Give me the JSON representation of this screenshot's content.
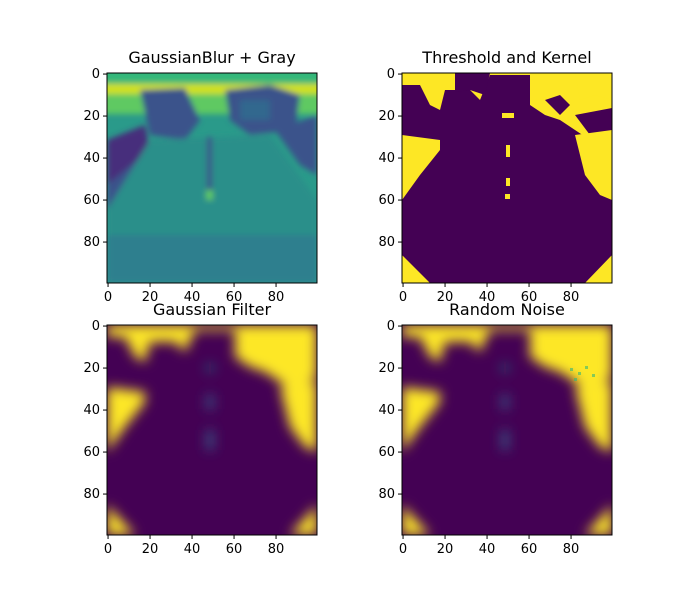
{
  "chart_data": [
    {
      "type": "heatmap",
      "title": "GaussianBlur + Gray",
      "xlabel": "",
      "ylabel": "",
      "xlim": [
        0,
        99
      ],
      "ylim": [
        99,
        0
      ],
      "x_ticks": [
        0,
        20,
        40,
        60,
        80
      ],
      "y_ticks": [
        0,
        20,
        40,
        60,
        80
      ],
      "colormap": "viridis",
      "content": "grayscale blurred road scene: bright horizon band near rows 5–8, darker trees and vehicles at top, teal road surface, dashed lane marking near column 48"
    },
    {
      "type": "heatmap",
      "title": "Threshold and Kernel",
      "xlabel": "",
      "ylabel": "",
      "xlim": [
        0,
        99
      ],
      "ylim": [
        99,
        0
      ],
      "x_ticks": [
        0,
        20,
        40,
        60,
        80
      ],
      "y_ticks": [
        0,
        20,
        40,
        60,
        80
      ],
      "colormap": "viridis (binary)",
      "content": "binary mask: dark road/tree region, yellow sky and roadside corners, thin yellow lane dashes near column 48"
    },
    {
      "type": "heatmap",
      "title": "Gaussian Filter",
      "xlabel": "",
      "ylabel": "",
      "xlim": [
        0,
        99
      ],
      "ylim": [
        99,
        0
      ],
      "x_ticks": [
        0,
        20,
        40,
        60,
        80
      ],
      "y_ticks": [
        0,
        20,
        40,
        60,
        80
      ],
      "colormap": "viridis",
      "content": "blurred version of the binary mask with soft teal edges"
    },
    {
      "type": "heatmap",
      "title": "Random Noise",
      "xlabel": "",
      "ylabel": "",
      "xlim": [
        0,
        99
      ],
      "ylim": [
        99,
        0
      ],
      "x_ticks": [
        0,
        20,
        40,
        60,
        80
      ],
      "y_ticks": [
        0,
        20,
        40,
        60,
        80
      ],
      "colormap": "viridis",
      "content": "blurred mask with added random noise"
    }
  ],
  "colors": {
    "viridis_dark": "#440154",
    "viridis_yellow": "#fde725",
    "viridis_teal": "#21918c",
    "viridis_green": "#35b779",
    "viridis_blue": "#3b528b"
  }
}
